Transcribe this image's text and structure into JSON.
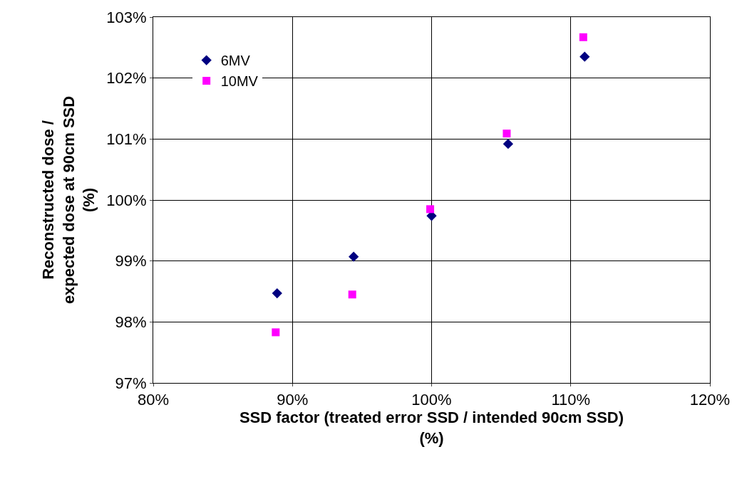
{
  "chart_data": {
    "type": "scatter",
    "xlabel": "SSD factor (treated error SSD / intended 90cm SSD) (%)",
    "ylabel": "Reconstructed dose / expected dose at 90cm SSD (%)",
    "series": [
      {
        "name": "6MV",
        "color": "#000080",
        "marker": "diamond",
        "x": [
          88.9,
          94.4,
          100.0,
          105.5,
          111.0
        ],
        "values": [
          98.47,
          99.07,
          99.74,
          100.92,
          102.35
        ]
      },
      {
        "name": "10MV",
        "color": "#ff00ff",
        "marker": "square",
        "x": [
          88.8,
          94.3,
          99.9,
          105.4,
          110.9
        ],
        "values": [
          97.83,
          98.45,
          99.85,
          101.09,
          102.67
        ]
      }
    ],
    "xlim": [
      80,
      120
    ],
    "xticks": [
      {
        "value": 80,
        "label": "80%"
      },
      {
        "value": 90,
        "label": "90%"
      },
      {
        "value": 100,
        "label": "100%"
      },
      {
        "value": 110,
        "label": "110%"
      },
      {
        "value": 120,
        "label": "120%"
      }
    ],
    "ylim": [
      97,
      103
    ],
    "yticks": [
      {
        "value": 97,
        "label": "97%"
      },
      {
        "value": 98,
        "label": "98%"
      },
      {
        "value": 99,
        "label": "99%"
      },
      {
        "value": 100,
        "label": "100%"
      },
      {
        "value": 101,
        "label": "101%"
      },
      {
        "value": 102,
        "label": "102%"
      },
      {
        "value": 103,
        "label": "103%"
      }
    ],
    "grid": true,
    "legend": "top left"
  }
}
